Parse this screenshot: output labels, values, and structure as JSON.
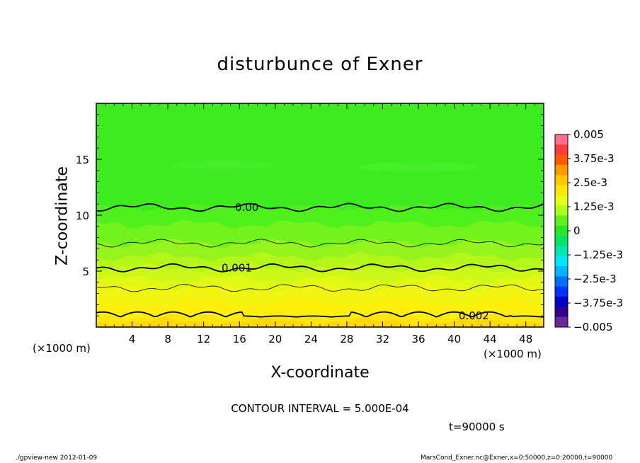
{
  "chart_data": {
    "type": "heatmap",
    "title": "disturbunce of Exner",
    "xlabel": "X-coordinate",
    "ylabel": "Z-coordinate",
    "x_unit": "(×1000 m)",
    "y_unit": "(×1000 m)",
    "xlim": [
      0,
      50
    ],
    "ylim": [
      0,
      20
    ],
    "x_ticks": [
      4,
      8,
      12,
      16,
      20,
      24,
      28,
      32,
      36,
      40,
      44,
      48
    ],
    "y_ticks": [
      5,
      10,
      15
    ],
    "colorbar": {
      "range": [
        -0.005,
        0.005
      ],
      "tick_labels": [
        "0.005",
        "3.75e-3",
        "2.5e-3",
        "1.25e-3",
        "0",
        "−1.25e-3",
        "−2.5e-3",
        "−3.75e-3",
        "−0.005"
      ],
      "colors": [
        "#ff6e8c",
        "#ff3c3c",
        "#ff5a00",
        "#ff9a00",
        "#ffc800",
        "#ffe60a",
        "#e6ff14",
        "#aaff1e",
        "#64f01e",
        "#28e628",
        "#00e664",
        "#00e6b4",
        "#00e6ff",
        "#00b4ff",
        "#006eff",
        "#0032ff",
        "#0000c8",
        "#32008c",
        "#6e2896"
      ]
    },
    "contours": [
      {
        "label": "0.002",
        "z_km": 1.0
      },
      {
        "label": "",
        "z_km": 3.5
      },
      {
        "label": "0.001",
        "z_km": 5.3
      },
      {
        "label": "",
        "z_km": 7.5
      },
      {
        "label": "0.00",
        "z_km": 10.7
      }
    ],
    "contour_interval_text": "CONTOUR INTERVAL = 5.000E-04",
    "time_text": "t=90000 s"
  },
  "footer": {
    "left": "./gpview-new  2012-01-09",
    "right": "MarsCond_Exner.nc@Exner,x=0:50000,z=0:20000,t=90000"
  }
}
